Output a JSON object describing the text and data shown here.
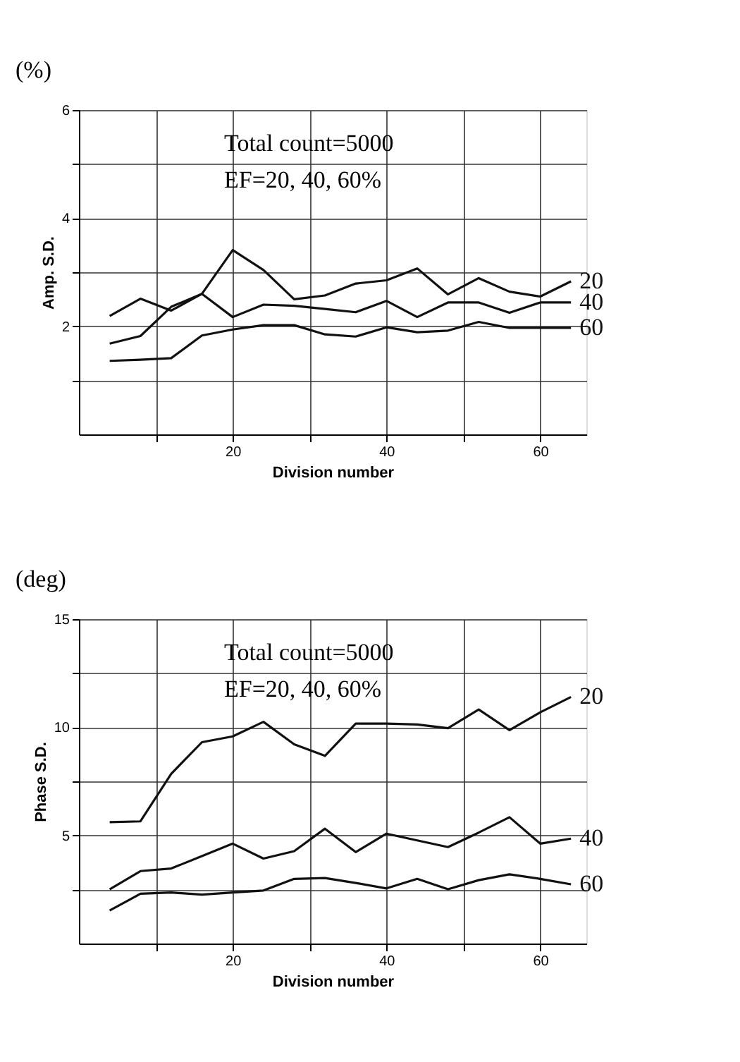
{
  "chart_data": [
    {
      "type": "line",
      "xlabel": "Division number",
      "ylabel": "Amp. S.D.",
      "annotations": [
        "(%)",
        "Total count=5000",
        "EF=20, 40, 60%"
      ],
      "x": [
        4,
        8,
        12,
        16,
        20,
        24,
        28,
        32,
        36,
        40,
        44,
        48,
        52,
        56,
        60,
        64
      ],
      "series": [
        {
          "name": "20",
          "color": "#111111",
          "values": [
            1.68,
            1.82,
            2.36,
            2.6,
            3.41,
            3.04,
            2.5,
            2.57,
            2.79,
            2.85,
            3.07,
            2.59,
            2.89,
            2.64,
            2.55,
            2.83
          ]
        },
        {
          "name": "40",
          "color": "#111111",
          "values": [
            2.19,
            2.51,
            2.29,
            2.6,
            2.17,
            2.4,
            2.38,
            2.32,
            2.26,
            2.47,
            2.17,
            2.44,
            2.44,
            2.25,
            2.44,
            2.44
          ]
        },
        {
          "name": "60",
          "color": "#111111",
          "values": [
            1.36,
            1.38,
            1.41,
            1.83,
            1.94,
            2.02,
            2.02,
            1.85,
            1.81,
            1.98,
            1.89,
            1.92,
            2.08,
            1.97,
            1.97,
            1.97
          ]
        }
      ],
      "xlim": [
        0,
        66
      ],
      "ylim": [
        0,
        6
      ],
      "xticks": [
        {
          "value": 10,
          "label": null
        },
        20,
        {
          "value": 30,
          "label": null
        },
        40,
        {
          "value": 50,
          "label": null
        },
        60
      ],
      "yticks": [
        {
          "value": 1,
          "label": null
        },
        2,
        {
          "value": 3,
          "label": null
        },
        4,
        {
          "value": 5,
          "label": null
        },
        6
      ],
      "grid": true,
      "legend": false,
      "line_style": "solid",
      "marker": "none"
    },
    {
      "type": "line",
      "xlabel": "Division number",
      "ylabel": "Phase S.D.",
      "annotations": [
        "(deg)",
        "Total count=5000",
        "EF=20, 40, 60%"
      ],
      "x": [
        4,
        8,
        12,
        16,
        20,
        24,
        28,
        32,
        36,
        40,
        44,
        48,
        52,
        56,
        60,
        64
      ],
      "series": [
        {
          "name": "20",
          "color": "#111111",
          "values": [
            5.61,
            5.65,
            7.85,
            9.31,
            9.58,
            10.25,
            9.21,
            8.68,
            10.17,
            10.17,
            10.13,
            9.96,
            10.82,
            9.87,
            10.69,
            11.4
          ]
        },
        {
          "name": "40",
          "color": "#111111",
          "values": [
            2.51,
            3.35,
            3.47,
            4.04,
            4.62,
            3.93,
            4.27,
            5.31,
            4.23,
            5.08,
            4.77,
            4.46,
            5.13,
            5.84,
            4.62,
            4.85
          ]
        },
        {
          "name": "60",
          "color": "#111111",
          "values": [
            1.53,
            2.3,
            2.36,
            2.26,
            2.36,
            2.45,
            2.99,
            3.03,
            2.8,
            2.55,
            2.99,
            2.51,
            2.93,
            3.2,
            2.99,
            2.74
          ]
        }
      ],
      "xlim": [
        0,
        66
      ],
      "ylim": [
        0,
        15
      ],
      "xticks": [
        {
          "value": 10,
          "label": null
        },
        20,
        {
          "value": 30,
          "label": null
        },
        40,
        {
          "value": 50,
          "label": null
        },
        60
      ],
      "yticks": [
        {
          "value": 2.5,
          "label": null
        },
        5,
        {
          "value": 7.5,
          "label": null
        },
        10,
        {
          "value": 12.5,
          "label": null
        },
        15
      ],
      "grid": true,
      "legend": false,
      "line_style": "solid",
      "marker": "none"
    }
  ]
}
